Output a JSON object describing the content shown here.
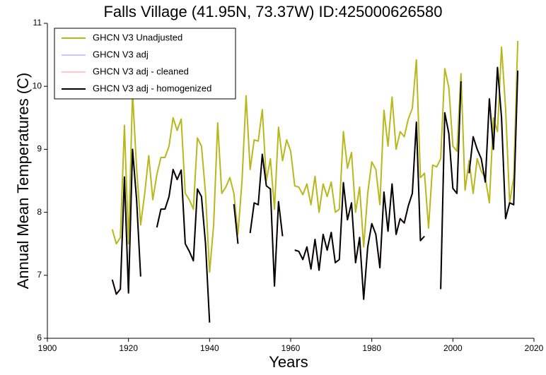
{
  "chart_data": {
    "type": "line",
    "title": "Falls Village (41.95N, 73.37W) ID:425000626580",
    "xlabel": "Years",
    "ylabel": "Annual Mean Temperatures (C)",
    "x": [
      1916,
      1917,
      1918,
      1919,
      1920,
      1921,
      1922,
      1923,
      1924,
      1925,
      1926,
      1927,
      1928,
      1929,
      1930,
      1931,
      1932,
      1933,
      1934,
      1935,
      1936,
      1937,
      1938,
      1939,
      1940,
      1941,
      1942,
      1943,
      1944,
      1945,
      1946,
      1947,
      1948,
      1949,
      1950,
      1951,
      1952,
      1953,
      1954,
      1955,
      1956,
      1957,
      1958,
      1959,
      1960,
      1961,
      1962,
      1963,
      1964,
      1965,
      1966,
      1967,
      1968,
      1969,
      1970,
      1971,
      1972,
      1973,
      1974,
      1975,
      1976,
      1977,
      1978,
      1979,
      1980,
      1981,
      1982,
      1983,
      1984,
      1985,
      1986,
      1987,
      1988,
      1989,
      1990,
      1991,
      1992,
      1993,
      1994,
      1995,
      1996,
      1997,
      1998,
      1999,
      2000,
      2001,
      2002,
      2003,
      2004,
      2005,
      2006,
      2007,
      2008,
      2009,
      2010,
      2011,
      2012,
      2013,
      2014,
      2015,
      2016
    ],
    "series": [
      {
        "name": "GHCN V3 Unadjusted",
        "color": "#b8b81e",
        "values": [
          7.73,
          7.5,
          7.6,
          9.38,
          7.5,
          9.9,
          8.7,
          7.8,
          8.3,
          8.9,
          8.2,
          8.6,
          8.87,
          8.87,
          9.05,
          9.5,
          9.3,
          9.48,
          8.3,
          8.2,
          8.05,
          9.18,
          9.05,
          8.3,
          7.05,
          7.8,
          9.42,
          8.3,
          8.4,
          8.55,
          8.3,
          7.65,
          8.5,
          9.85,
          8.68,
          9.15,
          9.13,
          9.63,
          8.5,
          8.85,
          8.05,
          9.35,
          8.82,
          9.15,
          8.97,
          8.42,
          8.4,
          8.28,
          8.45,
          8.12,
          8.57,
          8.0,
          8.45,
          8.25,
          8.48,
          8.0,
          8.05,
          9.28,
          8.7,
          8.95,
          8.0,
          8.4,
          7.45,
          8.3,
          8.8,
          8.68,
          8.12,
          9.62,
          9.05,
          9.83,
          9.0,
          9.28,
          9.2,
          9.48,
          9.65,
          10.42,
          8.55,
          8.62,
          7.75,
          8.75,
          8.72,
          8.85,
          10.28,
          9.98,
          9.05,
          8.97,
          10.2,
          8.35,
          8.82,
          8.3,
          8.85,
          8.65,
          8.55,
          8.15,
          9.5,
          9.28,
          10.62,
          9.65,
          8.15,
          8.55,
          10.72
        ]
      },
      {
        "name": "GHCN V3 adj",
        "color": "#c8c8ff",
        "values": [
          6.93,
          6.7,
          6.78,
          8.56,
          6.72,
          9.0,
          8.2,
          6.98,
          null,
          null,
          null,
          7.76,
          8.05,
          8.05,
          8.25,
          8.68,
          8.52,
          8.67,
          7.5,
          7.38,
          7.23,
          8.37,
          8.25,
          7.5,
          6.25,
          null,
          null,
          null,
          null,
          null,
          8.13,
          7.5,
          null,
          null,
          7.67,
          8.15,
          8.12,
          8.92,
          8.42,
          8.37,
          6.83,
          8.17,
          7.62,
          null,
          null,
          7.4,
          7.38,
          7.25,
          7.45,
          7.1,
          7.57,
          7.08,
          7.65,
          7.4,
          7.68,
          7.2,
          7.25,
          8.47,
          7.88,
          8.15,
          7.2,
          7.6,
          6.62,
          7.45,
          7.82,
          7.65,
          7.12,
          8.32,
          7.7,
          8.45,
          7.65,
          7.9,
          7.83,
          8.1,
          8.3,
          9.43,
          7.55,
          7.62,
          null,
          null,
          null,
          6.78,
          9.58,
          9.25,
          8.38,
          8.3,
          10.08,
          null,
          8.62,
          9.2,
          9.0,
          8.85,
          8.48,
          9.8,
          9.0,
          10.3,
          9.5,
          7.9,
          8.15,
          8.12,
          10.25
        ]
      },
      {
        "name": "GHCN V3 adj - cleaned",
        "color": "#ffc8c8",
        "values": [
          6.93,
          6.7,
          6.78,
          8.56,
          6.72,
          9.0,
          8.2,
          6.98,
          null,
          null,
          null,
          7.76,
          8.05,
          8.05,
          8.25,
          8.68,
          8.52,
          8.67,
          7.5,
          7.38,
          7.23,
          8.37,
          8.25,
          7.5,
          6.25,
          null,
          null,
          null,
          null,
          null,
          8.13,
          7.5,
          null,
          null,
          7.67,
          8.15,
          8.12,
          8.92,
          8.42,
          8.37,
          6.83,
          8.17,
          7.62,
          null,
          null,
          7.4,
          7.38,
          7.25,
          7.45,
          7.1,
          7.57,
          7.08,
          7.65,
          7.4,
          7.68,
          7.2,
          7.25,
          8.47,
          7.88,
          8.15,
          7.2,
          7.6,
          6.62,
          7.45,
          7.82,
          7.65,
          7.12,
          8.32,
          7.7,
          8.45,
          7.65,
          7.9,
          7.83,
          8.1,
          8.3,
          9.43,
          7.55,
          7.62,
          null,
          null,
          null,
          6.78,
          9.58,
          9.25,
          8.38,
          8.3,
          10.08,
          null,
          8.62,
          9.2,
          9.0,
          8.85,
          8.48,
          9.8,
          9.0,
          10.3,
          9.5,
          7.9,
          8.15,
          8.12,
          10.25
        ]
      },
      {
        "name": "GHCN V3 adj - homogenized",
        "color": "#000000",
        "values": [
          6.93,
          6.7,
          6.78,
          8.56,
          6.72,
          9.0,
          8.2,
          6.98,
          null,
          null,
          null,
          7.76,
          8.05,
          8.05,
          8.25,
          8.68,
          8.52,
          8.67,
          7.5,
          7.38,
          7.23,
          8.37,
          8.25,
          7.5,
          6.25,
          null,
          null,
          null,
          null,
          null,
          8.13,
          7.5,
          null,
          null,
          7.67,
          8.15,
          8.12,
          8.92,
          8.42,
          8.37,
          6.83,
          8.17,
          7.62,
          null,
          null,
          7.4,
          7.38,
          7.25,
          7.45,
          7.1,
          7.57,
          7.08,
          7.65,
          7.4,
          7.68,
          7.2,
          7.25,
          8.47,
          7.88,
          8.15,
          7.2,
          7.6,
          6.62,
          7.45,
          7.82,
          7.65,
          7.12,
          8.32,
          7.7,
          8.45,
          7.65,
          7.9,
          7.83,
          8.1,
          8.3,
          9.43,
          7.55,
          7.62,
          null,
          null,
          null,
          6.78,
          9.58,
          9.25,
          8.38,
          8.3,
          10.08,
          null,
          8.62,
          9.2,
          9.0,
          8.85,
          8.48,
          9.8,
          9.0,
          10.3,
          9.5,
          7.9,
          8.15,
          8.12,
          10.25
        ]
      }
    ],
    "xlim": [
      1900,
      2020
    ],
    "xticks": [
      1900,
      1920,
      1940,
      1960,
      1980,
      2000,
      2020
    ],
    "ylim": [
      6,
      11
    ],
    "yticks": [
      6,
      7,
      8,
      9,
      10,
      11
    ],
    "grid": false,
    "legend": "upper left"
  }
}
